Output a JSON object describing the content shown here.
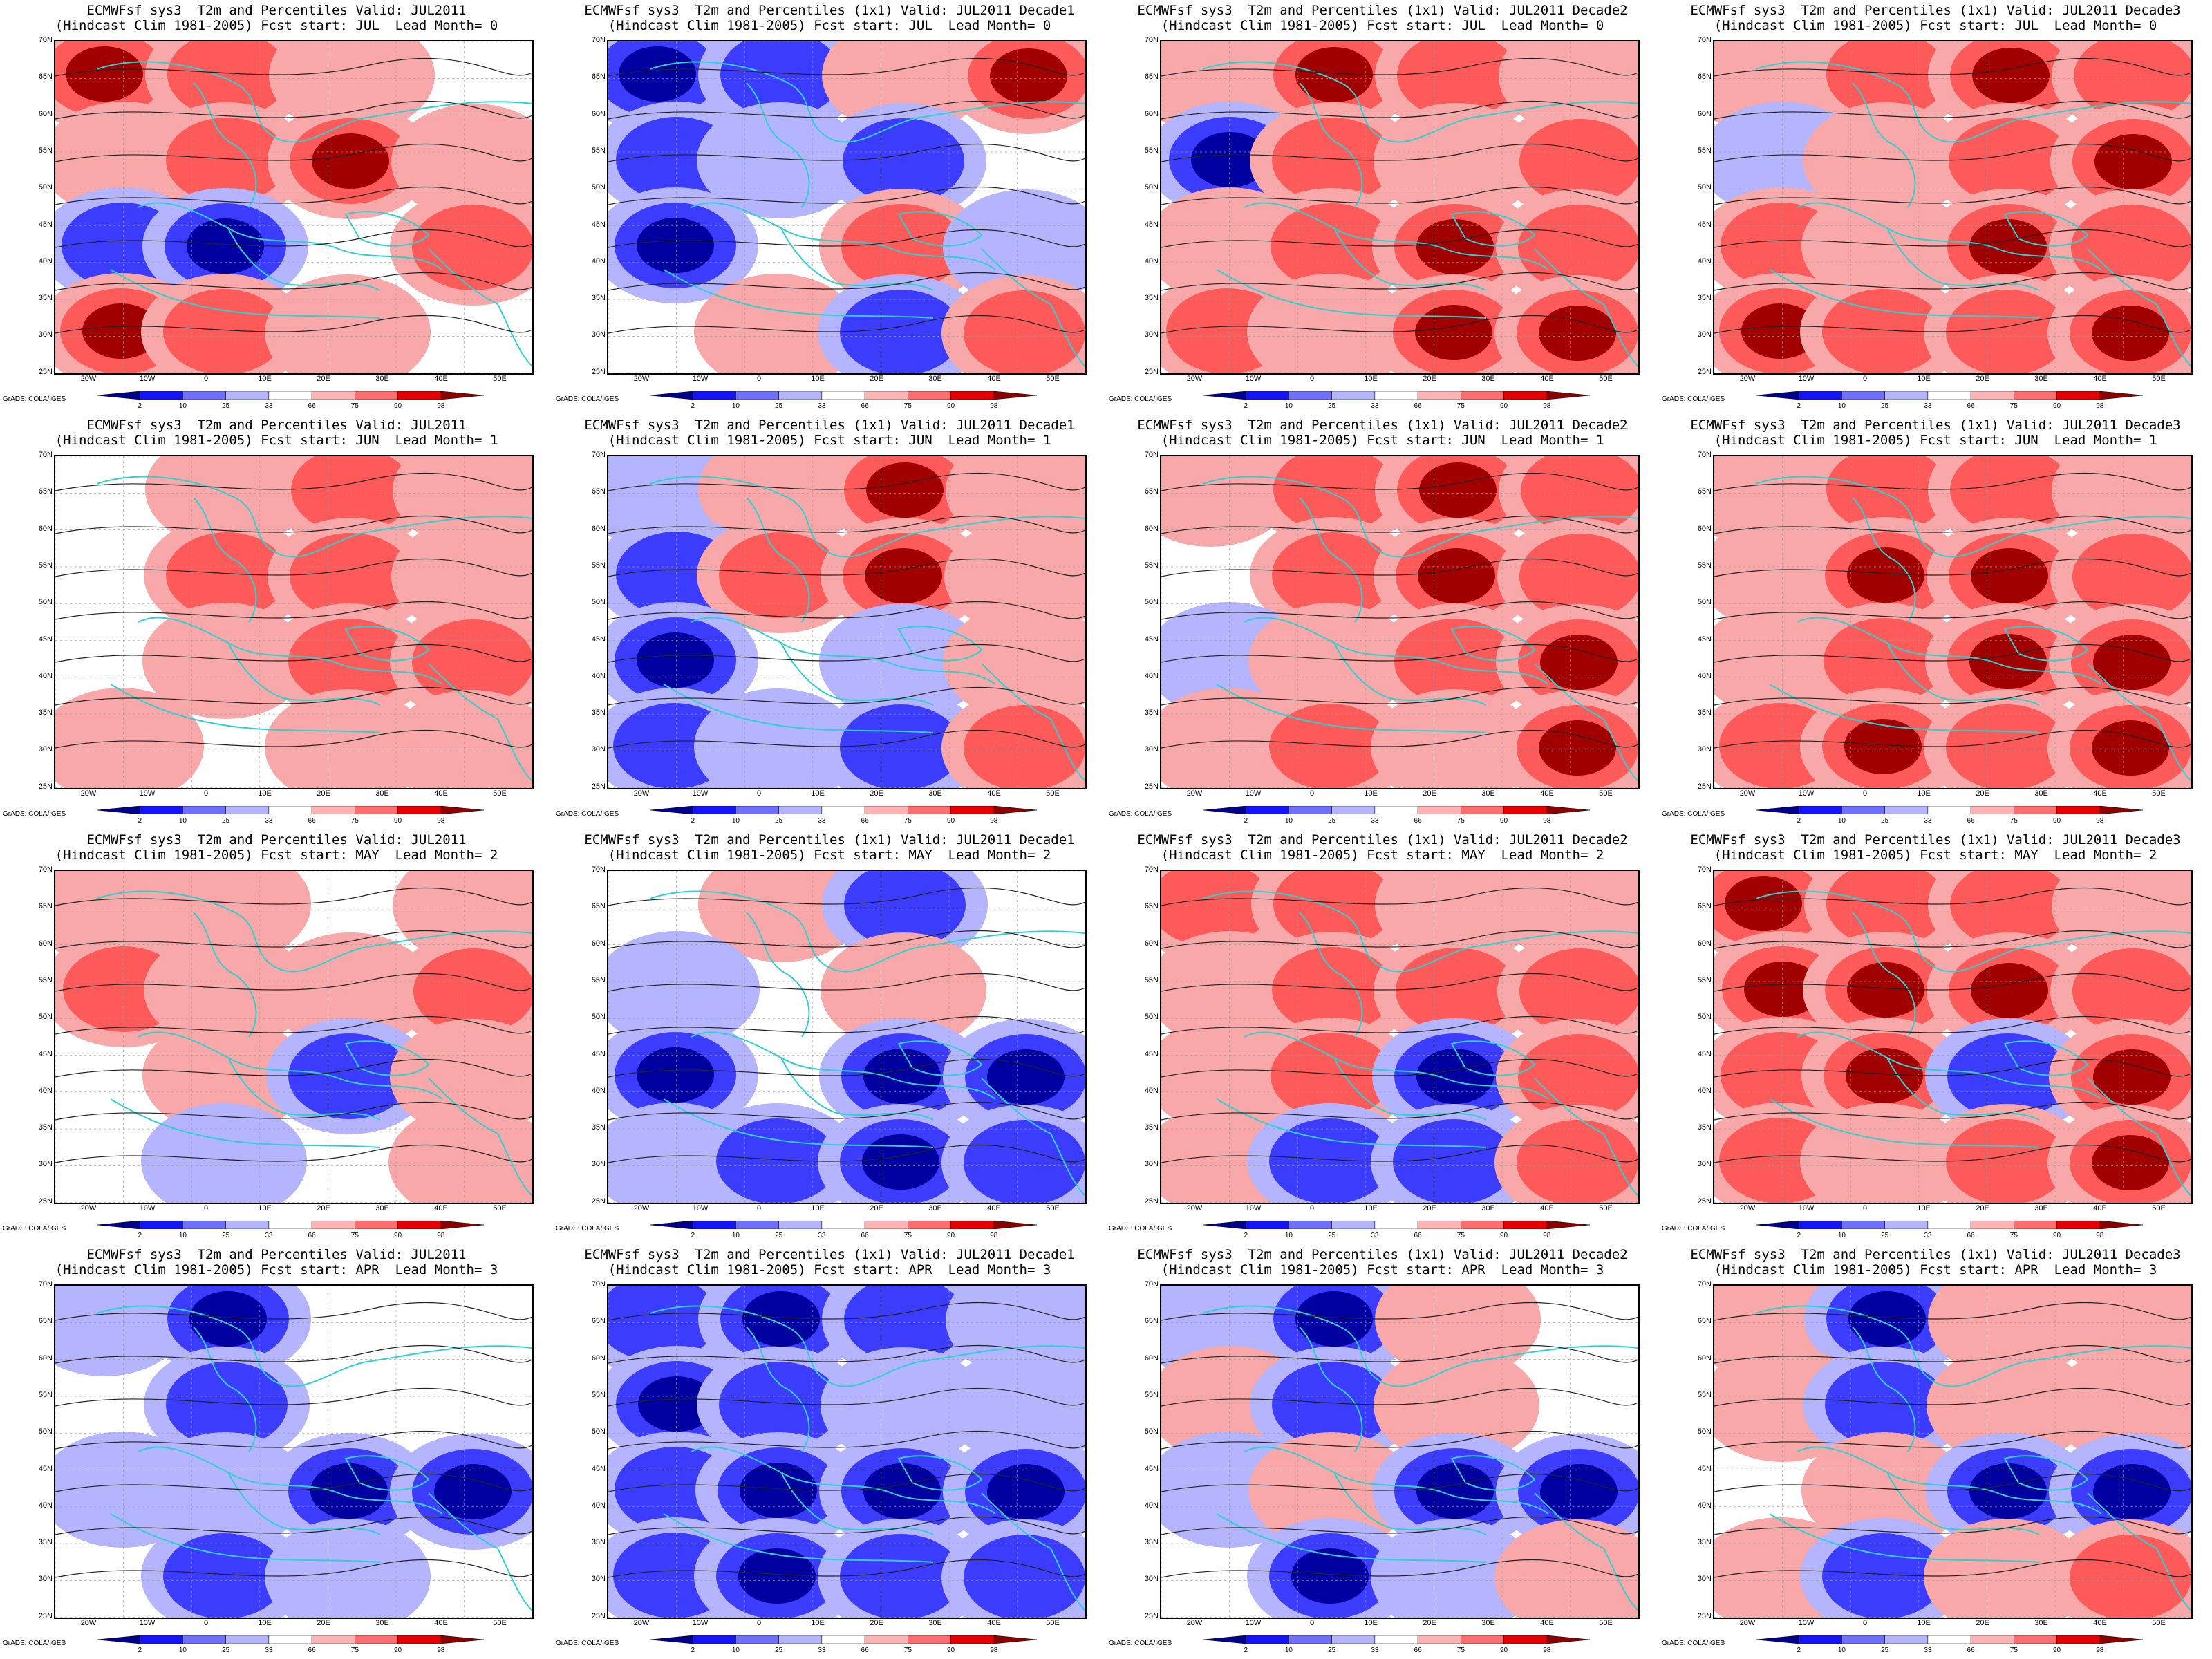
{
  "panels": [
    {
      "title1": "ECMWFsf sys3  T2m and Percentiles Valid: JUL2011",
      "title2": "(Hindcast Clim 1981-2005) Fcst start: JUL  Lead Month= 0",
      "pattern": [
        3,
        2,
        1,
        0,
        1,
        2,
        3,
        1,
        -2,
        -3,
        0,
        2,
        3,
        2,
        1,
        0
      ]
    },
    {
      "title1": "ECMWFsf sys3  T2m and Percentiles (1x1) Valid: JUL2011 Decade1",
      "title2": "(Hindcast Clim 1981-2005) Fcst start: JUL  Lead Month= 0",
      "pattern": [
        -3,
        -2,
        1,
        3,
        -2,
        -1,
        -2,
        0,
        -3,
        0,
        2,
        -1,
        0,
        1,
        -2,
        2
      ]
    },
    {
      "title1": "ECMWFsf sys3  T2m and Percentiles (1x1) Valid: JUL2011 Decade2",
      "title2": "(Hindcast Clim 1981-2005) Fcst start: JUL  Lead Month= 0",
      "pattern": [
        1,
        3,
        2,
        1,
        -3,
        2,
        1,
        2,
        1,
        2,
        3,
        2,
        2,
        1,
        3,
        3
      ]
    },
    {
      "title1": "ECMWFsf sys3  T2m and Percentiles (1x1) Valid: JUL2011 Decade3",
      "title2": "(Hindcast Clim 1981-2005) Fcst start: JUL  Lead Month= 0",
      "pattern": [
        1,
        2,
        3,
        2,
        -1,
        1,
        2,
        3,
        2,
        1,
        3,
        2,
        3,
        2,
        2,
        3
      ]
    },
    {
      "title1": "ECMWFsf sys3  T2m and Percentiles Valid: JUL2011",
      "title2": "(Hindcast Clim 1981-2005) Fcst start: JUN  Lead Month= 1",
      "pattern": [
        0,
        1,
        2,
        1,
        0,
        2,
        2,
        1,
        0,
        1,
        2,
        2,
        1,
        0,
        1,
        1
      ]
    },
    {
      "title1": "ECMWFsf sys3  T2m and Percentiles (1x1) Valid: JUL2011 Decade1",
      "title2": "(Hindcast Clim 1981-2005) Fcst start: JUN  Lead Month= 1",
      "pattern": [
        -1,
        1,
        3,
        1,
        -2,
        2,
        3,
        1,
        -3,
        0,
        -1,
        1,
        -2,
        -1,
        -2,
        2
      ]
    },
    {
      "title1": "ECMWFsf sys3  T2m and Percentiles (1x1) Valid: JUL2011 Decade2",
      "title2": "(Hindcast Clim 1981-2005) Fcst start: JUN  Lead Month= 1",
      "pattern": [
        1,
        2,
        3,
        2,
        0,
        2,
        3,
        2,
        -1,
        1,
        2,
        3,
        1,
        2,
        1,
        3
      ]
    },
    {
      "title1": "ECMWFsf sys3  T2m and Percentiles (1x1) Valid: JUL2011 Decade3",
      "title2": "(Hindcast Clim 1981-2005) Fcst start: JUN  Lead Month= 1",
      "pattern": [
        1,
        2,
        2,
        1,
        1,
        3,
        3,
        2,
        1,
        2,
        3,
        3,
        2,
        3,
        2,
        3
      ]
    },
    {
      "title1": "ECMWFsf sys3  T2m and Percentiles Valid: JUL2011",
      "title2": "(Hindcast Clim 1981-2005) Fcst start: MAY  Lead Month= 2",
      "pattern": [
        1,
        1,
        0,
        1,
        2,
        1,
        1,
        2,
        0,
        1,
        -2,
        1,
        0,
        -1,
        0,
        1
      ]
    },
    {
      "title1": "ECMWFsf sys3  T2m and Percentiles (1x1) Valid: JUL2011 Decade1",
      "title2": "(Hindcast Clim 1981-2005) Fcst start: MAY  Lead Month= 2",
      "pattern": [
        0,
        1,
        -2,
        0,
        -1,
        0,
        1,
        0,
        -3,
        0,
        -3,
        -3,
        -1,
        -2,
        -3,
        -2
      ]
    },
    {
      "title1": "ECMWFsf sys3  T2m and Percentiles (1x1) Valid: JUL2011 Decade2",
      "title2": "(Hindcast Clim 1981-2005) Fcst start: MAY  Lead Month= 2",
      "pattern": [
        2,
        2,
        1,
        1,
        1,
        2,
        2,
        2,
        1,
        2,
        -3,
        2,
        1,
        -2,
        -2,
        2
      ]
    },
    {
      "title1": "ECMWFsf sys3  T2m and Percentiles (1x1) Valid: JUL2011 Decade3",
      "title2": "(Hindcast Clim 1981-2005) Fcst start: MAY  Lead Month= 2",
      "pattern": [
        3,
        2,
        2,
        1,
        3,
        3,
        3,
        2,
        2,
        3,
        -2,
        3,
        2,
        1,
        2,
        3
      ]
    },
    {
      "title1": "ECMWFsf sys3  T2m and Percentiles Valid: JUL2011",
      "title2": "(Hindcast Clim 1981-2005) Fcst start: APR  Lead Month= 3",
      "pattern": [
        -1,
        -3,
        0,
        0,
        0,
        -2,
        0,
        0,
        -1,
        -1,
        -3,
        -3,
        0,
        -2,
        -1,
        0
      ]
    },
    {
      "title1": "ECMWFsf sys3  T2m and Percentiles (1x1) Valid: JUL2011 Decade1",
      "title2": "(Hindcast Clim 1981-2005) Fcst start: APR  Lead Month= 3",
      "pattern": [
        -2,
        -3,
        -2,
        -1,
        -3,
        -2,
        -1,
        -1,
        -2,
        -3,
        -3,
        -3,
        -2,
        -3,
        -2,
        -2
      ]
    },
    {
      "title1": "ECMWFsf sys3  T2m and Percentiles (1x1) Valid: JUL2011 Decade2",
      "title2": "(Hindcast Clim 1981-2005) Fcst start: APR  Lead Month= 3",
      "pattern": [
        -1,
        -3,
        1,
        0,
        1,
        -2,
        1,
        0,
        -1,
        1,
        -3,
        -3,
        0,
        -3,
        -1,
        1
      ]
    },
    {
      "title1": "ECMWFsf sys3  T2m and Percentiles (1x1) Valid: JUL2011 Decade3",
      "title2": "(Hindcast Clim 1981-2005) Fcst start: APR  Lead Month= 3",
      "pattern": [
        1,
        -3,
        1,
        1,
        1,
        -2,
        1,
        1,
        0,
        1,
        -3,
        -3,
        1,
        -2,
        1,
        2
      ]
    }
  ],
  "axes": {
    "lat_labels": [
      "70N",
      "65N",
      "60N",
      "55N",
      "50N",
      "45N",
      "40N",
      "35N",
      "30N",
      "25N"
    ],
    "lon_labels": [
      "20W",
      "10W",
      "0",
      "10E",
      "20E",
      "30E",
      "40E",
      "50E"
    ]
  },
  "colorbar": {
    "labels": [
      "2",
      "10",
      "25",
      "33",
      "66",
      "75",
      "90",
      "98"
    ],
    "colors": [
      "#00008b",
      "#1414ff",
      "#6e6eff",
      "#b4b4ff",
      "#ffffff",
      "#ffb4b4",
      "#ff6e6e",
      "#e60000",
      "#8b0000"
    ]
  },
  "credit": "GrADS: COLA/IGES",
  "palette": {
    "-3": "#0000a0",
    "-2": "#3c3cff",
    "-1": "#b4b4ff",
    "0": "#ffffff",
    "1": "#f8a8a8",
    "2": "#ff5a5a",
    "3": "#a00000"
  },
  "coast_color": "#30d0d0"
}
